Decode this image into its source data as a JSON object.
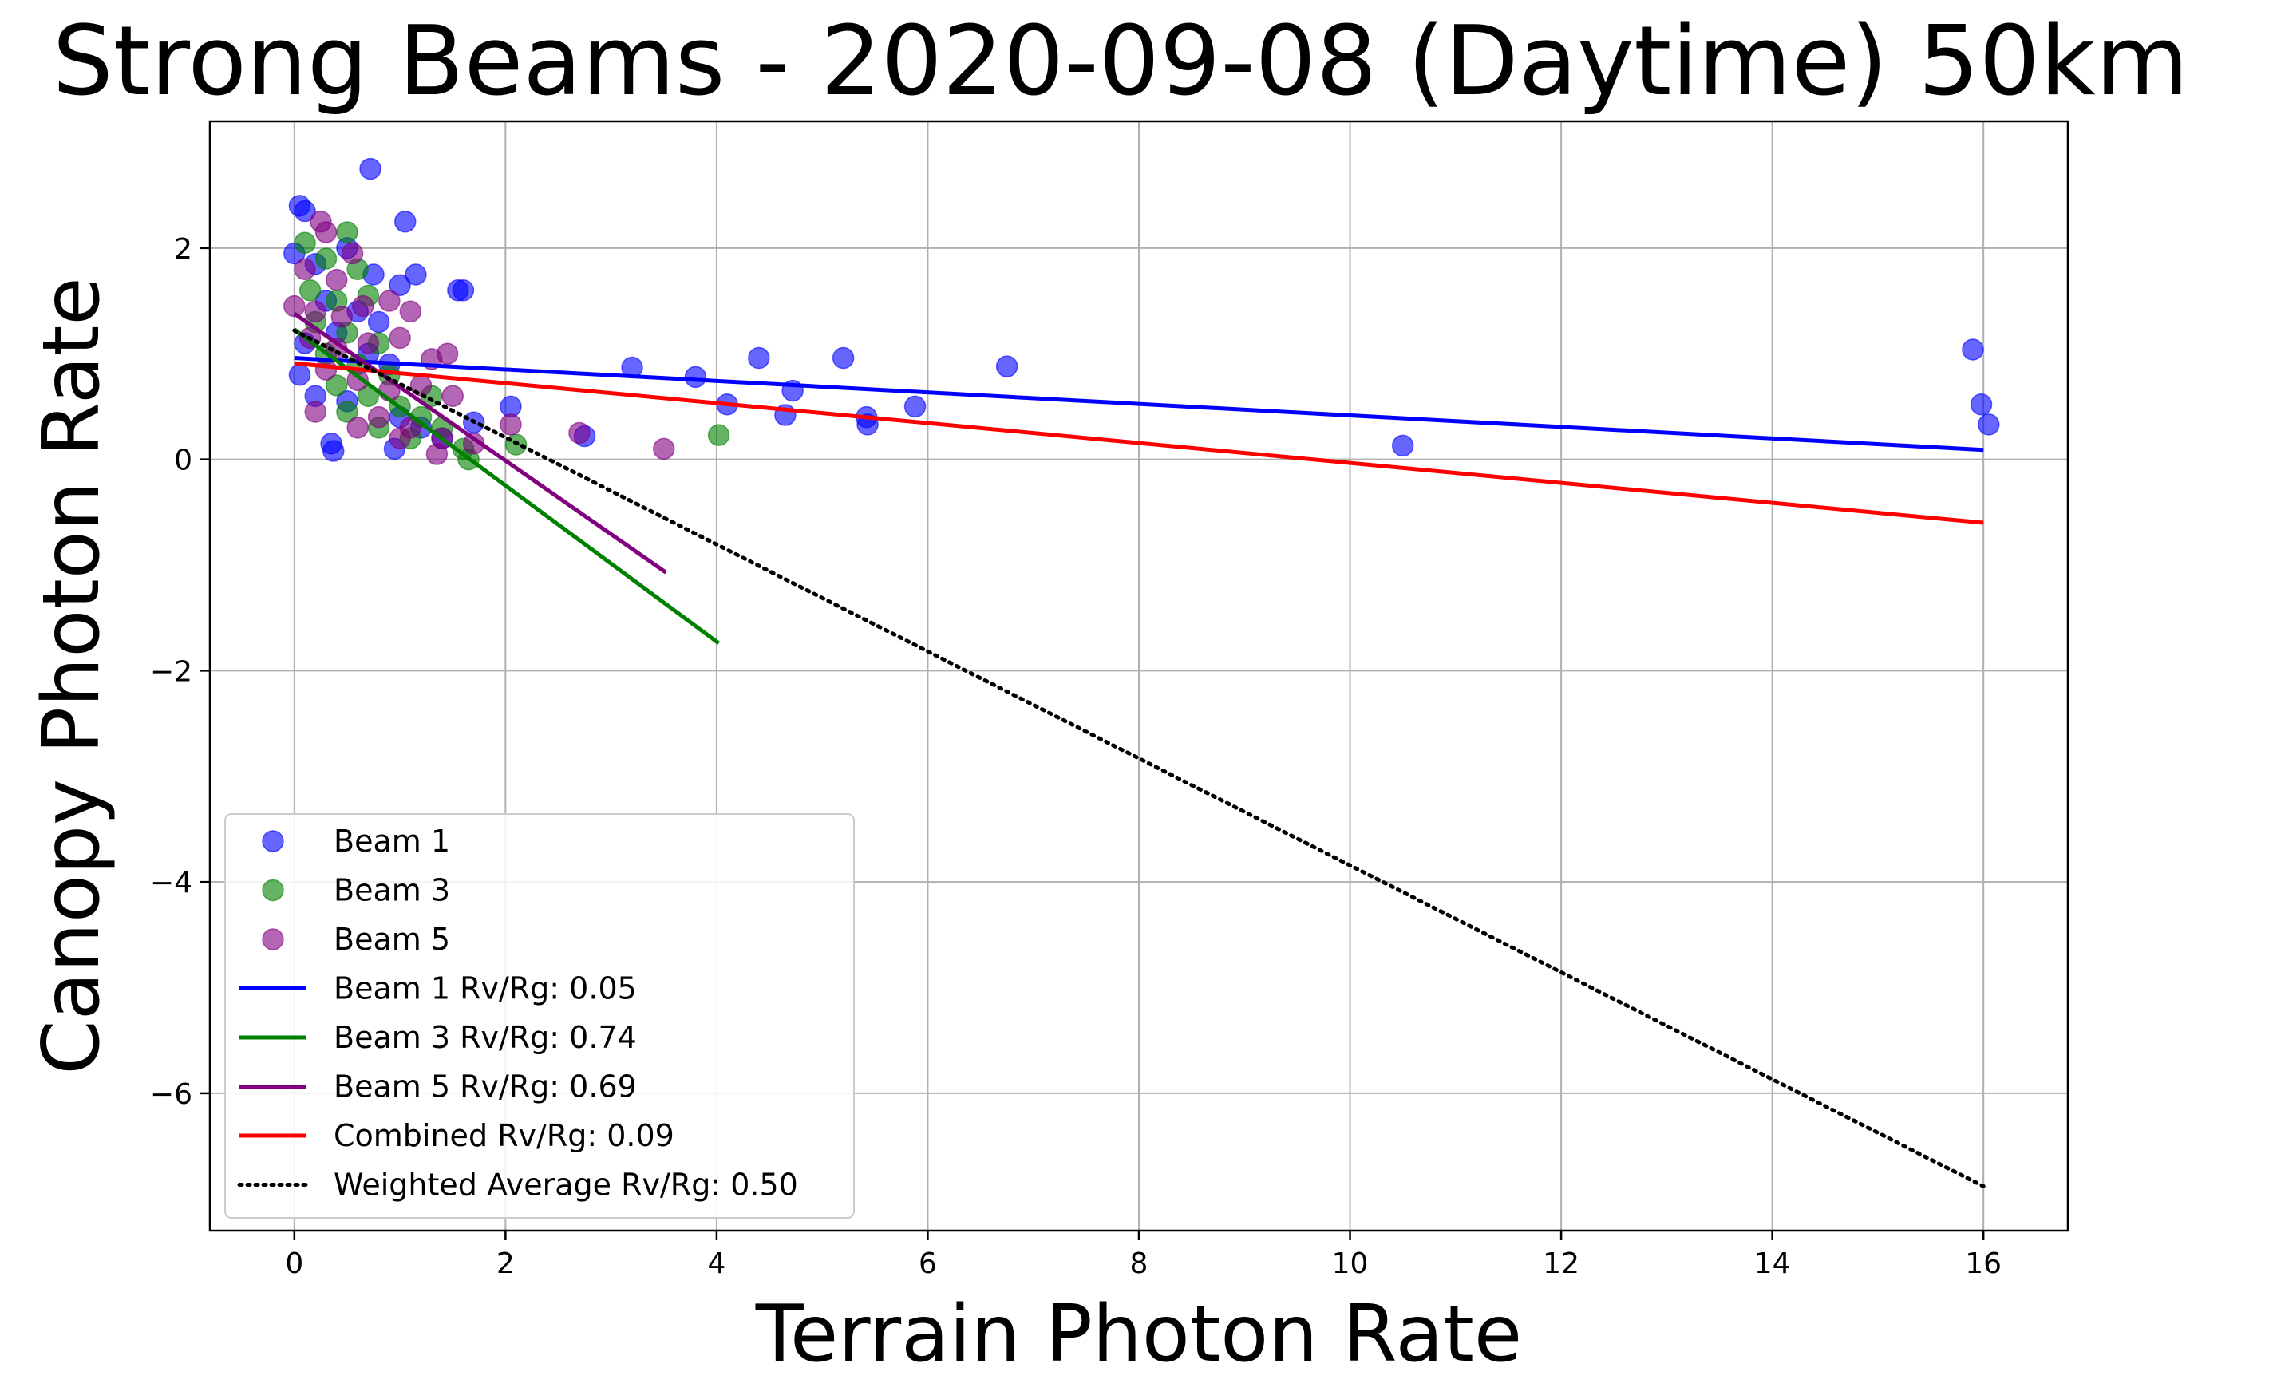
{
  "chart_data": {
    "type": "scatter",
    "title": "Strong Beams - 2020-09-08 (Daytime) 50km",
    "xlabel": "Terrain Photon Rate",
    "ylabel": "Canopy Photon Rate",
    "xlim": [
      -0.8,
      16.8
    ],
    "ylim": [
      -7.3,
      3.2
    ],
    "x_ticks": [
      0,
      2,
      4,
      6,
      8,
      10,
      12,
      14,
      16
    ],
    "y_ticks": [
      -6,
      -4,
      -2,
      0,
      2
    ],
    "x_tick_labels": [
      "0",
      "2",
      "4",
      "6",
      "8",
      "10",
      "12",
      "14",
      "16"
    ],
    "y_tick_labels": [
      "−6",
      "−4",
      "−2",
      "0",
      "2"
    ],
    "grid": true,
    "legend_position": "lower-left",
    "series": [
      {
        "name": "Beam 1",
        "kind": "scatter",
        "color": "#0000ff",
        "points": [
          [
            0.05,
            2.4
          ],
          [
            0.1,
            2.35
          ],
          [
            0.72,
            2.75
          ],
          [
            1.05,
            2.25
          ],
          [
            0.0,
            1.95
          ],
          [
            0.2,
            1.85
          ],
          [
            0.5,
            2.0
          ],
          [
            0.75,
            1.75
          ],
          [
            1.15,
            1.75
          ],
          [
            1.55,
            1.6
          ],
          [
            1.6,
            1.6
          ],
          [
            1.0,
            1.65
          ],
          [
            0.3,
            1.5
          ],
          [
            0.6,
            1.4
          ],
          [
            0.8,
            1.3
          ],
          [
            0.4,
            1.2
          ],
          [
            0.1,
            1.1
          ],
          [
            0.7,
            1.0
          ],
          [
            0.9,
            0.9
          ],
          [
            0.05,
            0.8
          ],
          [
            0.2,
            0.6
          ],
          [
            0.35,
            0.15
          ],
          [
            0.37,
            0.08
          ],
          [
            0.5,
            0.55
          ],
          [
            1.0,
            0.4
          ],
          [
            1.2,
            0.3
          ],
          [
            0.95,
            0.1
          ],
          [
            1.4,
            0.2
          ],
          [
            1.7,
            0.35
          ],
          [
            2.05,
            0.5
          ],
          [
            2.75,
            0.22
          ],
          [
            3.2,
            0.87
          ],
          [
            3.8,
            0.78
          ],
          [
            4.1,
            0.52
          ],
          [
            4.4,
            0.96
          ],
          [
            4.65,
            0.42
          ],
          [
            4.72,
            0.65
          ],
          [
            5.2,
            0.96
          ],
          [
            5.42,
            0.4
          ],
          [
            5.43,
            0.33
          ],
          [
            5.88,
            0.5
          ],
          [
            6.75,
            0.88
          ],
          [
            10.5,
            0.13
          ],
          [
            15.9,
            1.04
          ],
          [
            15.98,
            0.52
          ],
          [
            16.05,
            0.33
          ]
        ]
      },
      {
        "name": "Beam 3",
        "kind": "scatter",
        "color": "#008000",
        "points": [
          [
            0.1,
            2.05
          ],
          [
            0.5,
            2.15
          ],
          [
            0.3,
            1.9
          ],
          [
            0.6,
            1.8
          ],
          [
            0.15,
            1.6
          ],
          [
            0.4,
            1.5
          ],
          [
            0.7,
            1.55
          ],
          [
            0.2,
            1.3
          ],
          [
            0.5,
            1.2
          ],
          [
            0.8,
            1.1
          ],
          [
            0.3,
            1.0
          ],
          [
            0.6,
            0.9
          ],
          [
            0.9,
            0.8
          ],
          [
            0.4,
            0.7
          ],
          [
            0.7,
            0.6
          ],
          [
            1.0,
            0.5
          ],
          [
            1.2,
            0.4
          ],
          [
            0.8,
            0.3
          ],
          [
            1.1,
            0.2
          ],
          [
            1.4,
            0.3
          ],
          [
            1.6,
            0.1
          ],
          [
            1.65,
            0.0
          ],
          [
            1.3,
            0.6
          ],
          [
            0.5,
            0.45
          ],
          [
            2.1,
            0.14
          ],
          [
            4.02,
            0.23
          ]
        ]
      },
      {
        "name": "Beam 5",
        "kind": "scatter",
        "color": "#800080",
        "points": [
          [
            0.25,
            2.25
          ],
          [
            0.3,
            2.15
          ],
          [
            0.55,
            1.95
          ],
          [
            0.1,
            1.8
          ],
          [
            0.4,
            1.7
          ],
          [
            0.0,
            1.45
          ],
          [
            0.2,
            1.4
          ],
          [
            0.45,
            1.35
          ],
          [
            0.65,
            1.45
          ],
          [
            0.9,
            1.5
          ],
          [
            1.1,
            1.4
          ],
          [
            0.15,
            1.15
          ],
          [
            0.4,
            1.05
          ],
          [
            0.7,
            1.1
          ],
          [
            1.0,
            1.15
          ],
          [
            1.3,
            0.95
          ],
          [
            1.45,
            1.0
          ],
          [
            0.3,
            0.85
          ],
          [
            0.6,
            0.75
          ],
          [
            0.9,
            0.65
          ],
          [
            1.2,
            0.7
          ],
          [
            1.5,
            0.6
          ],
          [
            0.2,
            0.45
          ],
          [
            0.8,
            0.4
          ],
          [
            1.1,
            0.3
          ],
          [
            1.4,
            0.2
          ],
          [
            1.7,
            0.15
          ],
          [
            1.35,
            0.05
          ],
          [
            1.0,
            0.2
          ],
          [
            0.6,
            0.3
          ],
          [
            2.05,
            0.33
          ],
          [
            2.7,
            0.25
          ],
          [
            3.5,
            0.1
          ]
        ]
      },
      {
        "name": "Beam 1 Rv/Rg: 0.05",
        "kind": "line",
        "color": "#0000ff",
        "dash": "solid",
        "points": [
          [
            0,
            0.96
          ],
          [
            16.0,
            0.09
          ]
        ]
      },
      {
        "name": "Beam 3 Rv/Rg: 0.74",
        "kind": "line",
        "color": "#008000",
        "dash": "solid",
        "points": [
          [
            0,
            1.23
          ],
          [
            4.02,
            -1.74
          ]
        ]
      },
      {
        "name": "Beam 5 Rv/Rg: 0.69",
        "kind": "line",
        "color": "#800080",
        "dash": "solid",
        "points": [
          [
            0,
            1.38
          ],
          [
            3.52,
            -1.07
          ]
        ]
      },
      {
        "name": "Combined Rv/Rg: 0.09",
        "kind": "line",
        "color": "#ff0000",
        "dash": "solid",
        "points": [
          [
            0,
            0.91
          ],
          [
            16.0,
            -0.6
          ]
        ]
      },
      {
        "name": "Weighted Average Rv/Rg: 0.50",
        "kind": "line",
        "color": "#000000",
        "dash": "dotted",
        "points": [
          [
            0,
            1.22
          ],
          [
            16.0,
            -6.88
          ]
        ]
      }
    ]
  }
}
